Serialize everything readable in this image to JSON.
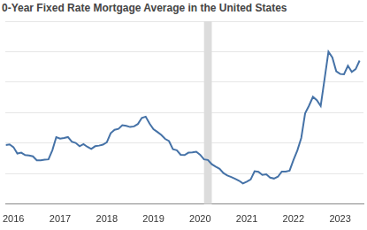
{
  "chart_data": {
    "type": "line",
    "title": "0-Year Fixed Rate Mortgage Average in the United States",
    "x": [
      2015.833,
      2015.917,
      2016.0,
      2016.083,
      2016.167,
      2016.25,
      2016.333,
      2016.417,
      2016.5,
      2016.583,
      2016.667,
      2016.75,
      2016.833,
      2016.917,
      2017.0,
      2017.083,
      2017.167,
      2017.25,
      2017.333,
      2017.417,
      2017.5,
      2017.583,
      2017.667,
      2017.75,
      2017.833,
      2017.917,
      2018.0,
      2018.083,
      2018.167,
      2018.25,
      2018.333,
      2018.417,
      2018.5,
      2018.583,
      2018.667,
      2018.75,
      2018.833,
      2018.917,
      2019.0,
      2019.083,
      2019.167,
      2019.25,
      2019.333,
      2019.417,
      2019.5,
      2019.583,
      2019.667,
      2019.75,
      2019.833,
      2019.917,
      2020.0,
      2020.083,
      2020.167,
      2020.25,
      2020.333,
      2020.417,
      2020.5,
      2020.583,
      2020.667,
      2020.75,
      2020.833,
      2020.917,
      2021.0,
      2021.083,
      2021.167,
      2021.25,
      2021.333,
      2021.417,
      2021.5,
      2021.583,
      2021.667,
      2021.75,
      2021.833,
      2021.917,
      2022.0,
      2022.083,
      2022.167,
      2022.25,
      2022.333,
      2022.417,
      2022.5,
      2022.583,
      2022.667,
      2022.75,
      2022.833,
      2022.917,
      2023.0,
      2023.083,
      2023.167,
      2023.25,
      2023.333,
      2023.417
    ],
    "values": [
      3.94,
      3.96,
      3.87,
      3.66,
      3.69,
      3.61,
      3.6,
      3.57,
      3.44,
      3.44,
      3.46,
      3.47,
      3.77,
      4.2,
      4.15,
      4.17,
      4.2,
      4.05,
      4.01,
      3.9,
      3.97,
      3.88,
      3.81,
      3.9,
      3.92,
      3.95,
      4.03,
      4.33,
      4.44,
      4.47,
      4.59,
      4.57,
      4.53,
      4.55,
      4.63,
      4.83,
      4.87,
      4.64,
      4.46,
      4.37,
      4.27,
      4.14,
      4.07,
      3.8,
      3.77,
      3.62,
      3.61,
      3.69,
      3.7,
      3.72,
      3.62,
      3.47,
      3.45,
      3.31,
      3.23,
      3.16,
      3.02,
      2.94,
      2.89,
      2.83,
      2.77,
      2.68,
      2.74,
      2.81,
      3.08,
      3.06,
      2.96,
      2.98,
      2.87,
      2.84,
      2.9,
      3.07,
      3.07,
      3.1,
      3.45,
      3.76,
      4.17,
      4.98,
      5.23,
      5.52,
      5.41,
      5.22,
      6.11,
      7.0,
      6.81,
      6.36,
      6.27,
      6.26,
      6.54,
      6.34,
      6.43,
      6.71
    ],
    "color": "#4572a7",
    "xlim": [
      2015.833,
      2023.5
    ],
    "xticks": [
      2016,
      2017,
      2018,
      2019,
      2020,
      2021,
      2022,
      2023
    ],
    "ylim": [
      2,
      8
    ],
    "yticks": [
      2,
      3,
      4,
      5,
      6,
      7,
      8
    ],
    "grid": true,
    "tick_labels": "x",
    "recession": {
      "start": 2020.083,
      "end": 2020.25
    }
  }
}
